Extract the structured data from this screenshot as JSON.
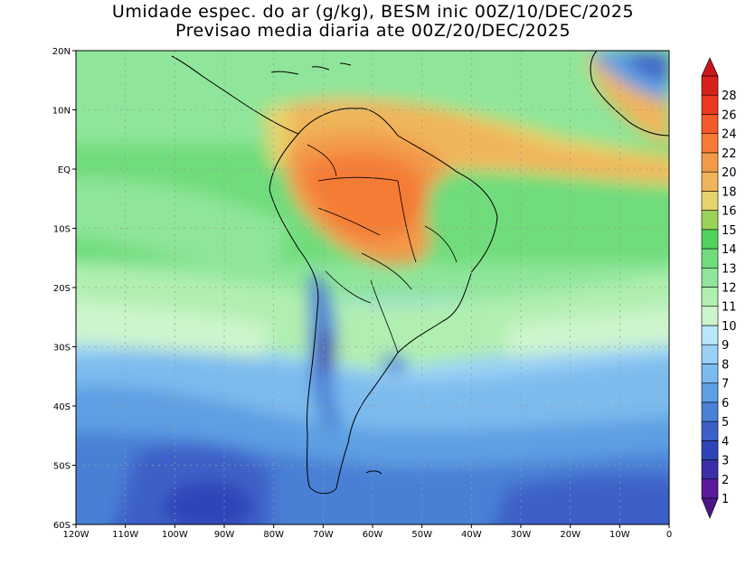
{
  "title": {
    "line1": "Umidade espec. do ar (g/kg), BESM inic 00Z/10/DEC/2025",
    "line2": "Previsao media diaria ate 00Z/20/DEC/2025"
  },
  "map": {
    "lon_range": [
      -120,
      0
    ],
    "lat_range": [
      -60,
      20
    ],
    "x_ticks": [
      "120W",
      "110W",
      "100W",
      "90W",
      "80W",
      "70W",
      "60W",
      "50W",
      "40W",
      "30W",
      "20W",
      "10W",
      "0"
    ],
    "y_ticks": [
      "20N",
      "10N",
      "EQ",
      "10S",
      "20S",
      "30S",
      "40S",
      "50S",
      "60S"
    ],
    "grid": "dotted"
  },
  "colorbar": {
    "levels": [
      "1",
      "2",
      "3",
      "4",
      "5",
      "6",
      "7",
      "8",
      "9",
      "10",
      "11",
      "12",
      "13",
      "14",
      "15",
      "16",
      "18",
      "20",
      "22",
      "24",
      "26",
      "28"
    ],
    "colors": [
      "#5b1a9e",
      "#3a2fa8",
      "#2e45b8",
      "#3c60c8",
      "#4a80d6",
      "#5d9fe3",
      "#7cbbee",
      "#9ad0f5",
      "#b9e6fb",
      "#cdf5cd",
      "#b1efb0",
      "#8fe69a",
      "#70dc7c",
      "#4fd35b",
      "#9bd25a",
      "#e7d36c",
      "#f0b55a",
      "#f39a48",
      "#f57c35",
      "#f35a29",
      "#eb3a20",
      "#d8211c"
    ],
    "under_color": "#4a1585",
    "over_color": "#c8171b"
  }
}
